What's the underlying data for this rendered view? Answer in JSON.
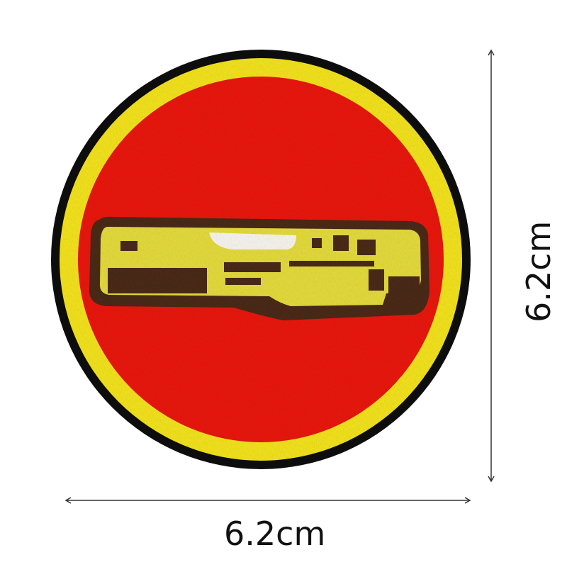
{
  "product": {
    "type": "embroidered round patch",
    "motif": "dashboard",
    "colors": {
      "border_outer": "#0e0a08",
      "border_inner": "#f2e21e",
      "field": "#e8150d",
      "motif_yellow": "#e4da3c",
      "motif_brown": "#4a2a18",
      "motif_white": "#f7f4ee"
    }
  },
  "dimensions": {
    "width_label": "6.2cm",
    "height_label": "6.2cm"
  }
}
